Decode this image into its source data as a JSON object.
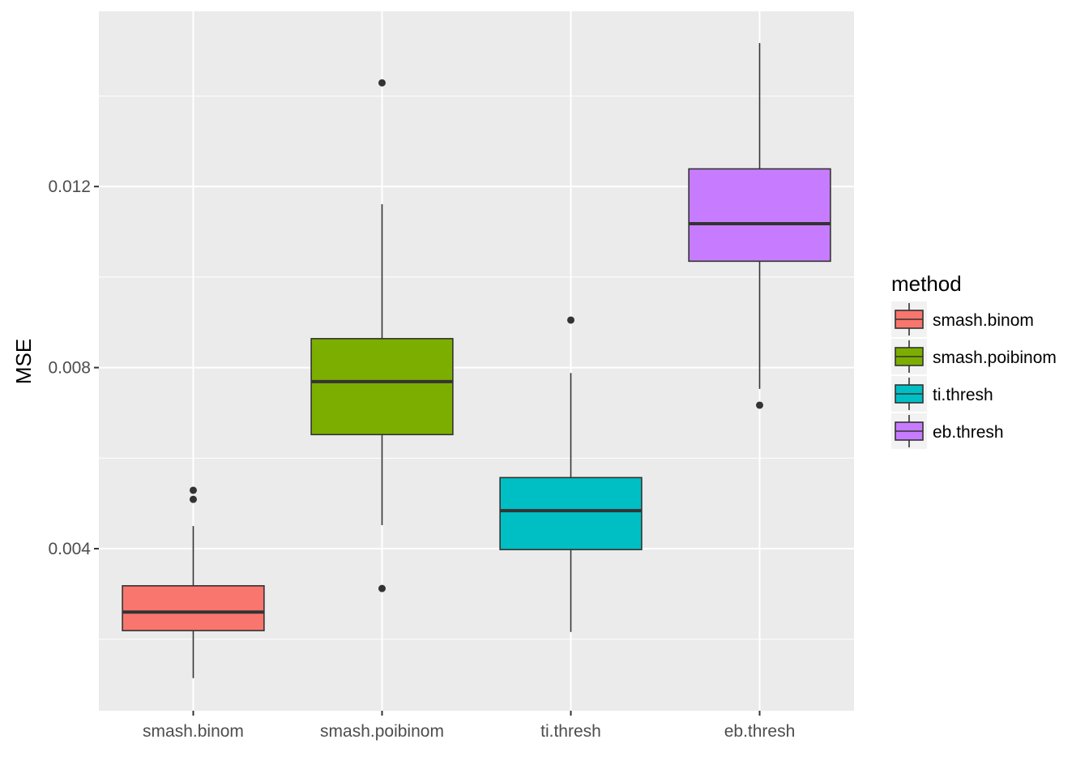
{
  "chart_data": {
    "type": "boxplot",
    "title": "",
    "xlabel": "",
    "ylabel": "MSE",
    "ylim": [
      0.00042,
      0.01587
    ],
    "yticks": [
      0.004,
      0.008,
      0.012
    ],
    "ytick_labels": [
      "0.004",
      "0.008",
      "0.012"
    ],
    "grid": true,
    "categories": [
      "smash.binom",
      "smash.poibinom",
      "ti.thresh",
      "eb.thresh"
    ],
    "legend": {
      "title": "method",
      "placement": "right",
      "entries": [
        "smash.binom",
        "smash.poibinom",
        "ti.thresh",
        "eb.thresh"
      ]
    },
    "series": [
      {
        "name": "smash.binom",
        "color": "#F8766D",
        "whisker_low": 0.00114,
        "q1": 0.00219,
        "median": 0.0026,
        "q3": 0.00318,
        "whisker_high": 0.0045,
        "outliers": [
          0.00529,
          0.00509
        ]
      },
      {
        "name": "smash.poibinom",
        "color": "#7CAE00",
        "whisker_low": 0.00452,
        "q1": 0.00652,
        "median": 0.00769,
        "q3": 0.00864,
        "whisker_high": 0.01161,
        "outliers": [
          0.01429,
          0.00312
        ]
      },
      {
        "name": "ti.thresh",
        "color": "#00BFC4",
        "whisker_low": 0.00216,
        "q1": 0.00398,
        "median": 0.00484,
        "q3": 0.00557,
        "whisker_high": 0.00788,
        "outliers": [
          0.00905
        ]
      },
      {
        "name": "eb.thresh",
        "color": "#C77CFF",
        "whisker_low": 0.00753,
        "q1": 0.01035,
        "median": 0.01118,
        "q3": 0.01239,
        "whisker_high": 0.01517,
        "outliers": [
          0.00717
        ]
      }
    ]
  }
}
